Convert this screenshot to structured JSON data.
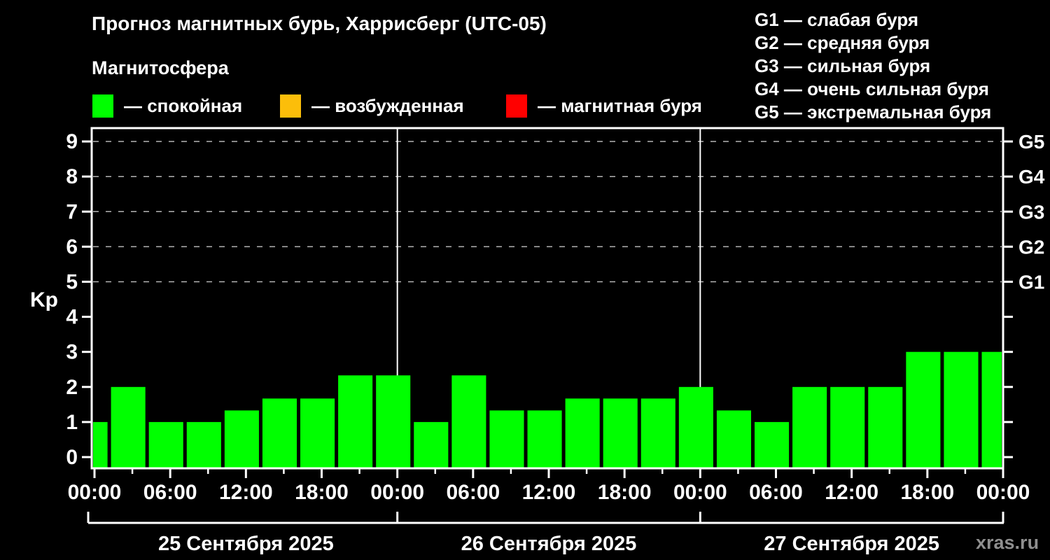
{
  "chart_data": {
    "type": "bar",
    "title": "Прогноз магнитных бурь, Харрисберг (UTC-05)",
    "subtitle": "Магнитосфера",
    "ylabel": "Kp",
    "ylim": [
      0,
      9
    ],
    "grid": "dashed horizontal lines at Kp 5..9",
    "legend_position": "top-left",
    "legend": [
      {
        "label": "— спокойная",
        "color": "#00ff00"
      },
      {
        "label": "— возбужденная",
        "color": "#fcbe0a"
      },
      {
        "label": "— магнитная буря",
        "color": "#ff0000"
      }
    ],
    "g_scale_legend": [
      "G1 — слабая буря",
      "G2 — средняя буря",
      "G3 — сильная буря",
      "G4 — очень сильная буря",
      "G5 — экстремальная буря"
    ],
    "y_ticks": [
      0,
      1,
      2,
      3,
      4,
      5,
      6,
      7,
      8,
      9
    ],
    "right_axis": [
      {
        "label": "G1",
        "kp": 5
      },
      {
        "label": "G2",
        "kp": 6
      },
      {
        "label": "G3",
        "kp": 7
      },
      {
        "label": "G4",
        "kp": 8
      },
      {
        "label": "G5",
        "kp": 9
      }
    ],
    "grid_levels": [
      5,
      6,
      7,
      8,
      9
    ],
    "x_tick_labels": [
      "00:00",
      "06:00",
      "12:00",
      "18:00",
      "00:00",
      "06:00",
      "12:00",
      "18:00",
      "00:00",
      "06:00",
      "12:00",
      "18:00",
      "00:00"
    ],
    "hours_per_bar": 3,
    "days": [
      {
        "date": "25 Сентября 2025",
        "kp": [
          1,
          2,
          1,
          1,
          1.33,
          1.67,
          1.67,
          2.33
        ]
      },
      {
        "date": "26 Сентября 2025",
        "kp": [
          2.33,
          1,
          2.33,
          1.33,
          1.33,
          1.67,
          1.67,
          1.67
        ]
      },
      {
        "date": "27 Сентября 2025",
        "kp": [
          2,
          1.33,
          1,
          2,
          2,
          2,
          3,
          3
        ]
      }
    ],
    "trailing_partial_kp": 3,
    "watermark": "xras.ru"
  }
}
